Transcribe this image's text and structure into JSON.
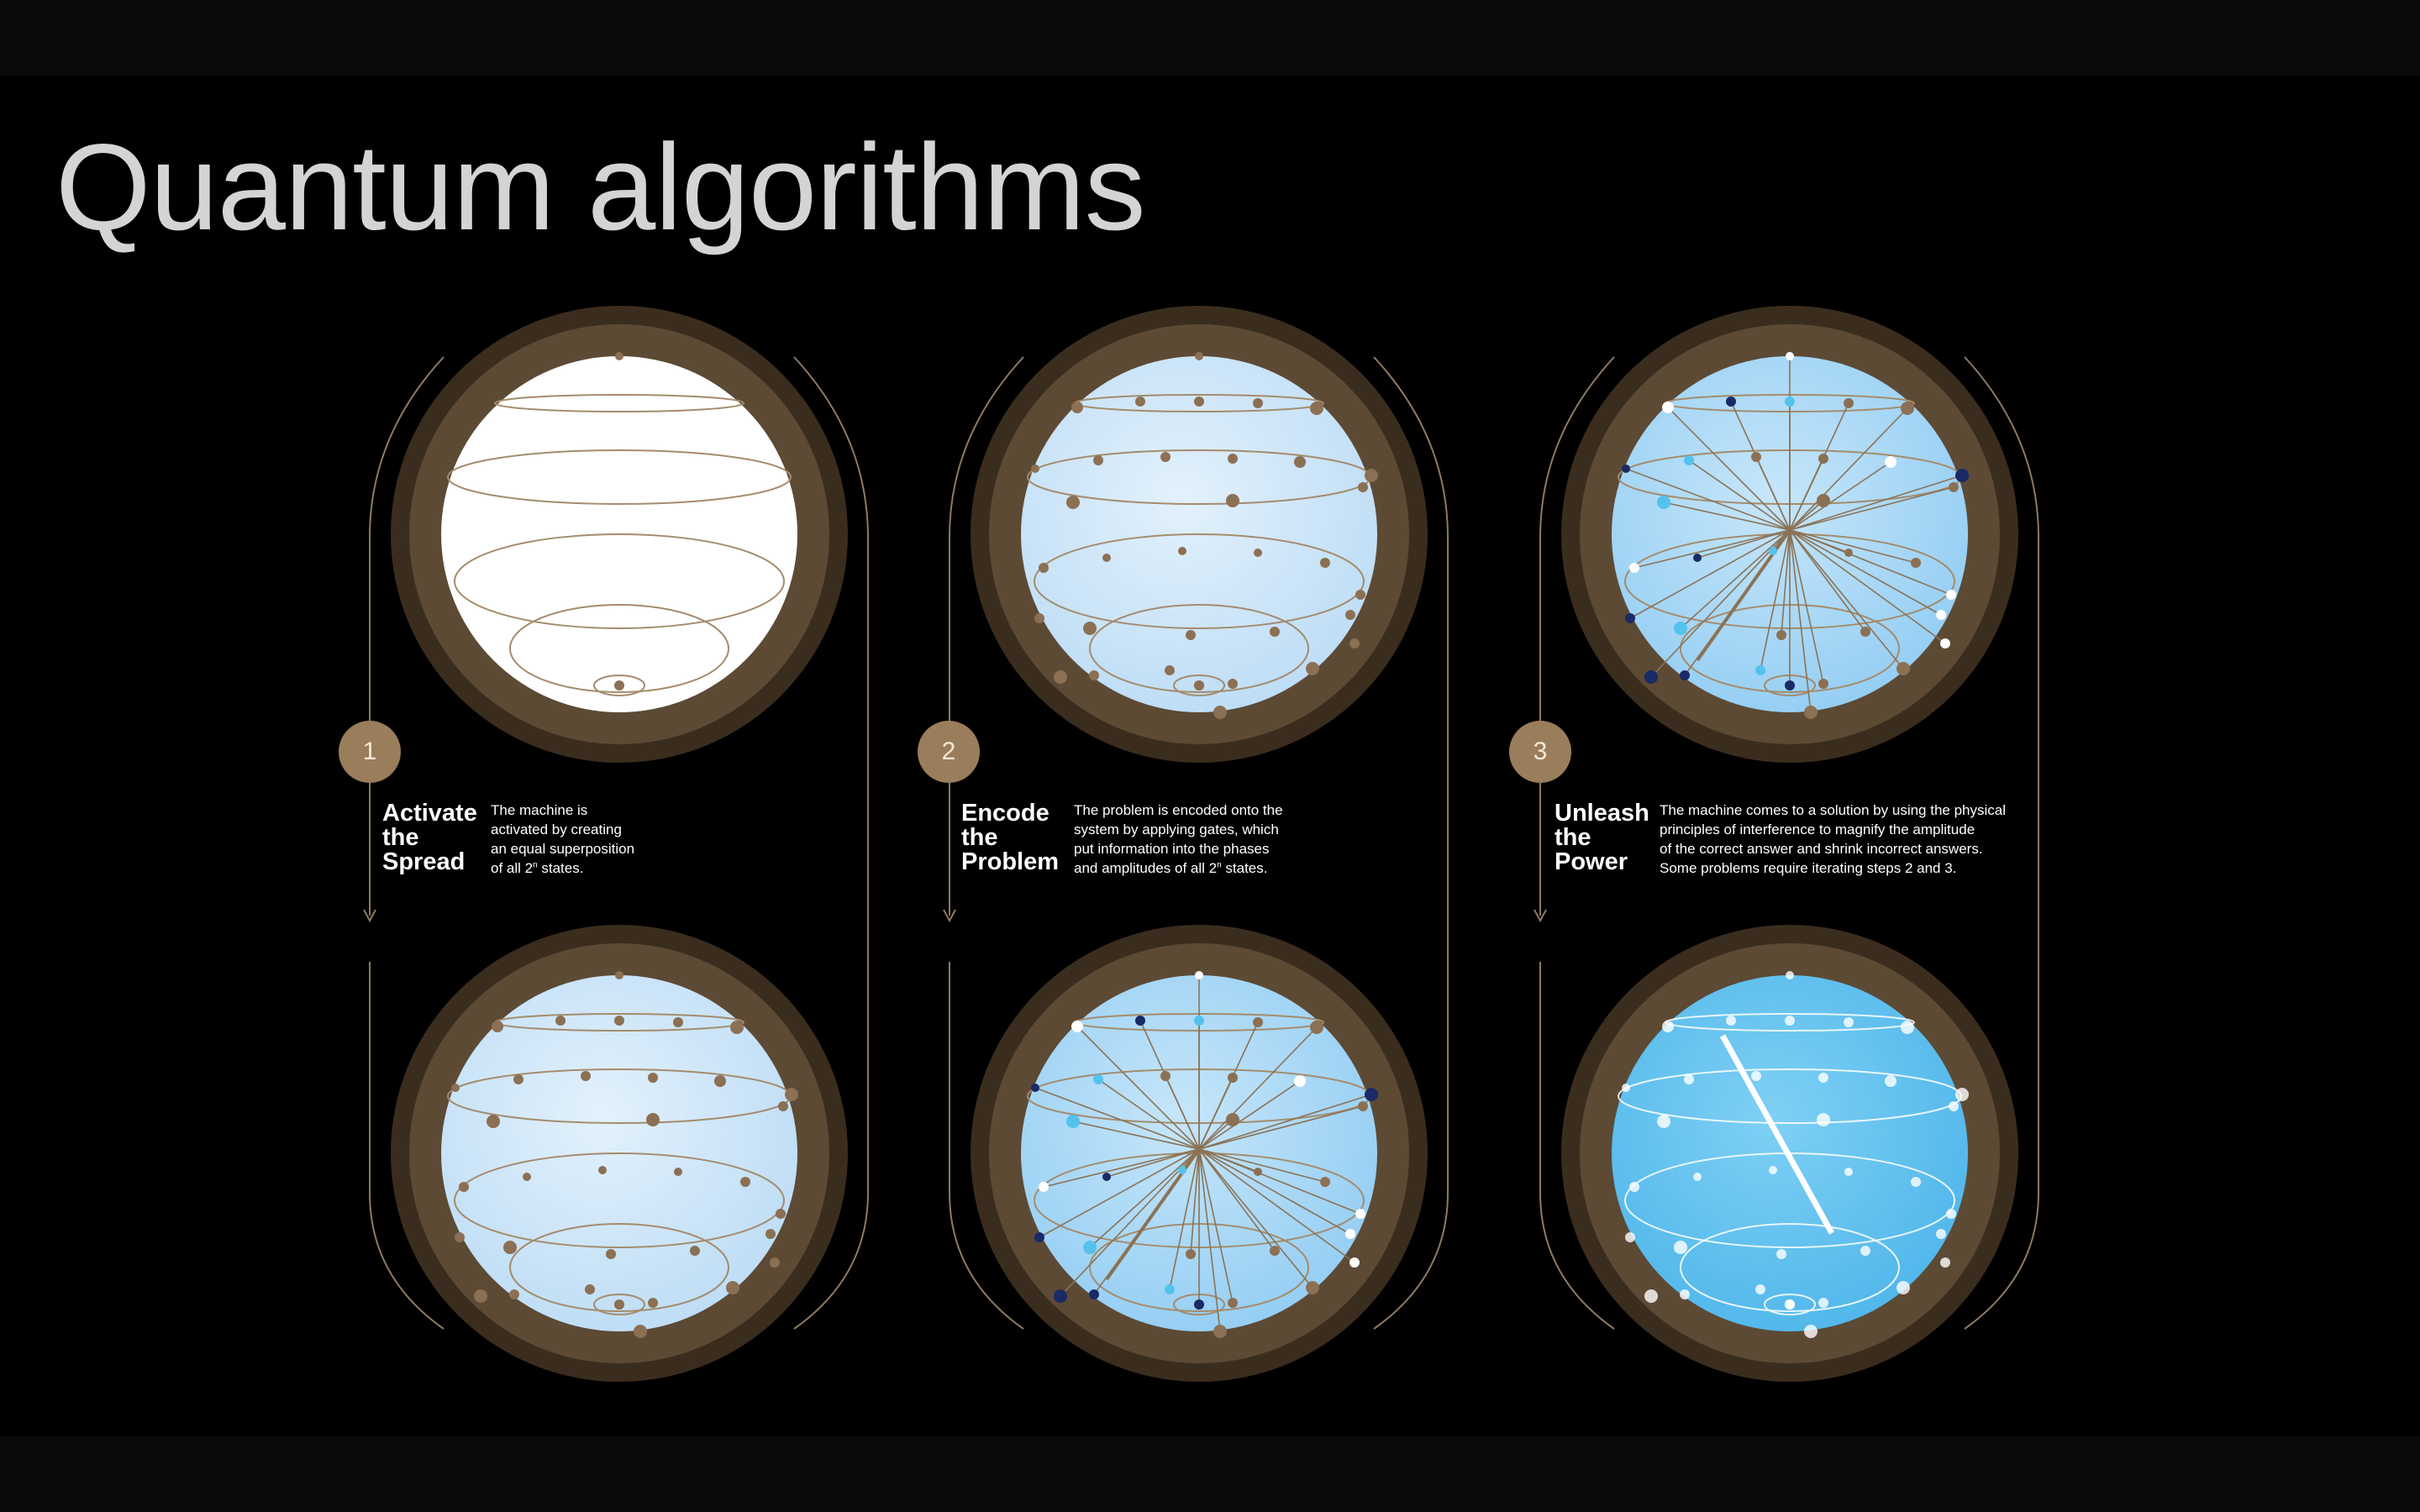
{
  "slide": {
    "title": "Quantum algorithms"
  },
  "steps": [
    {
      "number": "1",
      "name": [
        "Activate",
        "the",
        "Spread"
      ],
      "desc": [
        "The machine is",
        "activated by creating",
        "an equal superposition",
        "of all 2",
        "n",
        " states."
      ]
    },
    {
      "number": "2",
      "name": [
        "Encode",
        "the",
        "Problem"
      ],
      "desc": [
        "The problem is encoded onto the",
        "system by applying gates, which",
        "put information into the phases",
        "and amplitudes of all 2",
        "n",
        " states."
      ]
    },
    {
      "number": "3",
      "name": [
        "Unleash",
        "the",
        "Power"
      ],
      "desc": [
        "The machine comes to a solution by using the physical",
        "principles of interference to magnify the amplitude",
        "of the correct answer and shrink incorrect answers.",
        "Some problems require iterating steps 2 and 3."
      ]
    }
  ],
  "colors": {
    "ring_outer": "#3b2d1e",
    "ring_inner": "#5c4a35",
    "orbit": "#a48c6c",
    "dot_brown": "#8b7054",
    "dot_navy": "#1a2a66",
    "dot_cyan": "#55c2ee",
    "dot_white": "#ffffff",
    "sphere_white": "#ffffff",
    "sphere_pale": "#cfe6f8",
    "sphere_light": "#a8d8f6",
    "sphere_bright": "#5bbfee"
  }
}
